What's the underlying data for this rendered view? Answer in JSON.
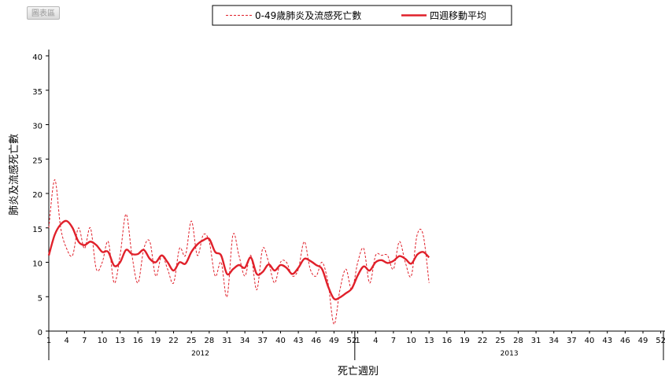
{
  "chart_data": {
    "type": "line",
    "xlabel": "死亡週別",
    "ylabel": "肺炎及流感死亡數",
    "ylim": [
      0,
      40
    ],
    "yticks": [
      0,
      5,
      10,
      15,
      20,
      25,
      30,
      35,
      40
    ],
    "years": [
      "2012",
      "2013"
    ],
    "weeks_per_year": 52,
    "xtick_labels": [
      "1",
      "4",
      "7",
      "10",
      "13",
      "16",
      "19",
      "22",
      "25",
      "28",
      "31",
      "34",
      "37",
      "40",
      "43",
      "46",
      "49",
      "52",
      "1",
      "4",
      "7",
      "10",
      "13",
      "16",
      "19",
      "22",
      "25",
      "28",
      "31",
      "34",
      "37",
      "40",
      "43",
      "46",
      "49",
      "52"
    ],
    "grid": false,
    "legend_position": "top",
    "badge_text": "圖表區",
    "series": [
      {
        "name": "0-49歲肺炎及流感死亡數",
        "style": "dashed",
        "color": "#e0202a",
        "values": [
          15,
          22,
          15,
          12,
          11,
          15,
          12,
          15,
          9,
          10,
          13,
          7,
          11,
          17,
          11,
          7,
          12,
          13,
          8,
          11,
          9,
          7,
          12,
          11,
          16,
          11,
          14,
          13,
          8,
          10,
          5,
          14,
          11,
          8,
          11,
          6,
          12,
          10,
          7,
          10,
          10,
          8,
          9,
          13,
          9,
          8,
          10,
          7,
          1,
          6,
          9,
          6,
          10,
          12,
          7,
          11,
          11,
          11,
          9,
          13,
          10,
          8,
          14,
          14,
          7
        ]
      },
      {
        "name": "四週移動平均",
        "style": "solid",
        "color": "#e0202a",
        "values": [
          11,
          14,
          15.5,
          16,
          15,
          13,
          12.5,
          13,
          12.5,
          11.5,
          11.5,
          9.5,
          10,
          11.8,
          11.2,
          11.2,
          11.8,
          10.5,
          10,
          11,
          10,
          8.8,
          10,
          9.8,
          11.5,
          12.6,
          13.2,
          13.4,
          11.5,
          11,
          8.3,
          9,
          9.6,
          9.2,
          10.7,
          8.3,
          8.6,
          9.7,
          8.8,
          9.6,
          9.2,
          8.3,
          9.2,
          10.5,
          10.2,
          9.6,
          9,
          6.5,
          4.7,
          4.9,
          5.5,
          6.2,
          8.1,
          9.4,
          8.8,
          10,
          10.3,
          9.9,
          10.2,
          10.9,
          10.5,
          9.8,
          11.1,
          11.5,
          10.7
        ]
      }
    ]
  }
}
